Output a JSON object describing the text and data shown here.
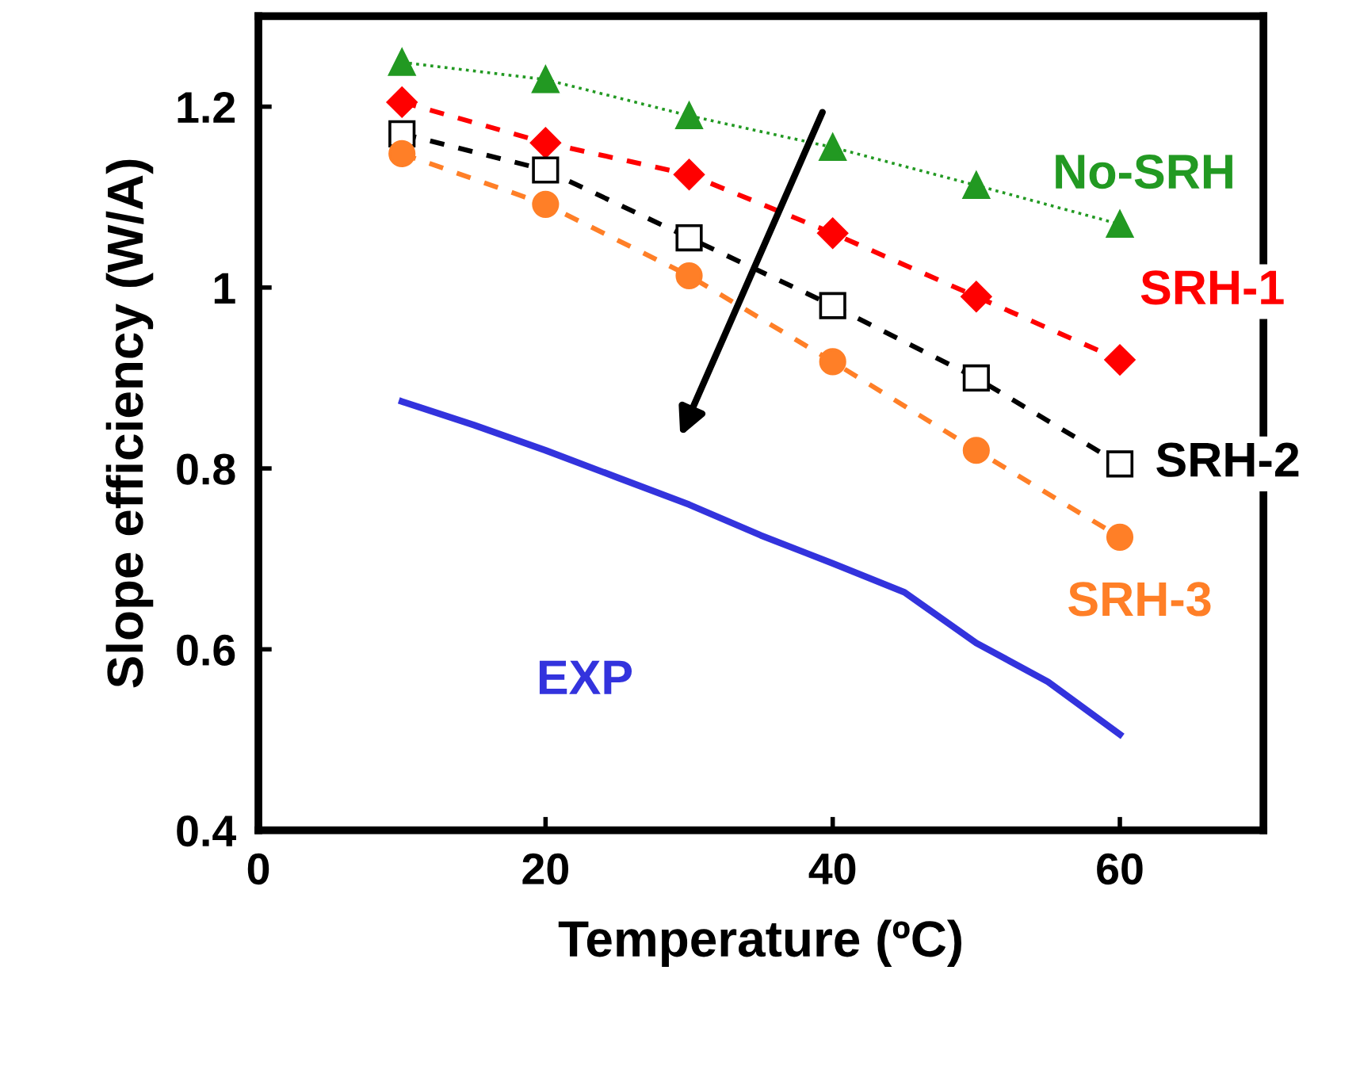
{
  "chart_data": {
    "type": "line",
    "xlabel": "Temperature (ºC)",
    "ylabel": "Slope efficiency (W/A)",
    "xlim": [
      0,
      70
    ],
    "xticks": [
      0,
      20,
      40,
      60
    ],
    "ylim": [
      0.4,
      1.3
    ],
    "yticks": [
      0.4,
      0.6,
      0.8,
      1,
      1.2
    ],
    "grid": false,
    "legend": false,
    "series": [
      {
        "name": "No-SRH",
        "color": "#229922",
        "marker": "triangle",
        "line_style": "dotted",
        "x": [
          10,
          20,
          30,
          40,
          50,
          60
        ],
        "values": [
          1.249,
          1.23,
          1.19,
          1.155,
          1.113,
          1.07
        ]
      },
      {
        "name": "SRH-1",
        "color": "#ff0000",
        "marker": "diamond",
        "line_style": "dashed",
        "x": [
          10,
          20,
          30,
          40,
          50,
          60
        ],
        "values": [
          1.205,
          1.16,
          1.125,
          1.06,
          0.99,
          0.92
        ]
      },
      {
        "name": "SRH-2",
        "color": "#000000",
        "marker": "square",
        "line_style": "dashed",
        "x": [
          10,
          20,
          30,
          40,
          50,
          60
        ],
        "values": [
          1.17,
          1.13,
          1.055,
          0.98,
          0.9,
          0.805
        ]
      },
      {
        "name": "SRH-3",
        "color": "#ff7f27",
        "marker": "circle",
        "line_style": "dashed",
        "x": [
          10,
          20,
          30,
          40,
          50,
          60
        ],
        "values": [
          1.148,
          1.092,
          1.013,
          0.918,
          0.82,
          0.724
        ]
      },
      {
        "name": "EXP",
        "color": "#3333dd",
        "marker": "none",
        "line_style": "solid",
        "x": [
          10,
          15,
          20,
          25,
          30,
          35,
          40,
          45,
          50,
          55,
          60
        ],
        "values": [
          0.874,
          0.848,
          0.82,
          0.79,
          0.76,
          0.726,
          0.695,
          0.663,
          0.607,
          0.564,
          0.506
        ]
      }
    ]
  }
}
